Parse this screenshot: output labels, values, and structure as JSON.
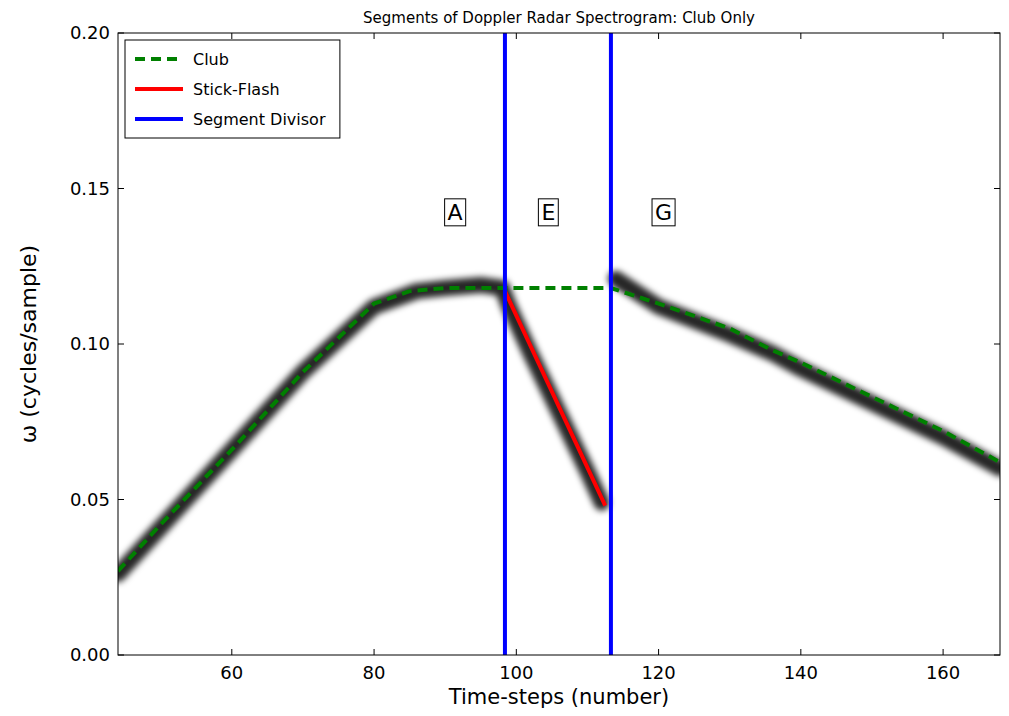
{
  "chart_data": {
    "type": "line",
    "title": "Segments of Doppler Radar Spectrogram: Club Only",
    "x_label": "Time-steps (number)",
    "y_label": "ω  (cycles/sample)",
    "xlim": [
      44,
      168
    ],
    "ylim": [
      0,
      0.2
    ],
    "xticks": [
      60,
      80,
      100,
      120,
      140,
      160
    ],
    "yticks": [
      {
        "value": 0,
        "label": "0.00"
      },
      0.05,
      {
        "value": 0.1,
        "label": "0.10"
      },
      0.15,
      {
        "value": 0.2,
        "label": "0.20"
      }
    ],
    "grid": false,
    "legend": "upper left",
    "series": [
      {
        "type": "ridge",
        "color": "#000000",
        "x": [
          44,
          50,
          60,
          70,
          80,
          86,
          90,
          95,
          98,
          99,
          102,
          106,
          110,
          112,
          113,
          114,
          120,
          130,
          136,
          140,
          150,
          160,
          168
        ],
        "values": [
          0.026,
          0.041,
          0.066,
          0.091,
          0.112,
          0.117,
          0.118,
          0.119,
          0.118,
          0.112,
          0.097,
          0.078,
          0.059,
          0.049,
          null,
          0.121,
          0.112,
          0.103,
          0.097,
          0.092,
          0.081,
          0.07,
          0.06
        ]
      },
      {
        "name": "Club",
        "type": "line",
        "color": "#008000",
        "line_style": "dashed",
        "x": [
          44,
          50,
          60,
          70,
          80,
          85,
          90,
          98.4,
          113.3,
          120,
          130,
          136,
          140,
          150,
          160,
          168
        ],
        "values": [
          0.027,
          0.042,
          0.066,
          0.091,
          0.113,
          0.117,
          0.118,
          0.118,
          0.118,
          0.113,
          0.105,
          0.098,
          0.094,
          0.083,
          0.072,
          0.062
        ]
      },
      {
        "name": "Stick-Flash",
        "type": "line",
        "color": "#ff0000",
        "line_style": "solid",
        "x": [
          98.4,
          112.5
        ],
        "values": [
          0.117,
          0.048
        ]
      },
      {
        "name": "Segment Divisor",
        "type": "vline",
        "color": "#0000ff",
        "line_style": "solid",
        "x": [
          98.4,
          113.3
        ]
      }
    ],
    "annotations": [
      {
        "text": "A",
        "x": 91.4,
        "y": 0.1425
      },
      {
        "text": "E",
        "x": 104.5,
        "y": 0.1425
      },
      {
        "text": "G",
        "x": 120.7,
        "y": 0.1425
      }
    ]
  }
}
